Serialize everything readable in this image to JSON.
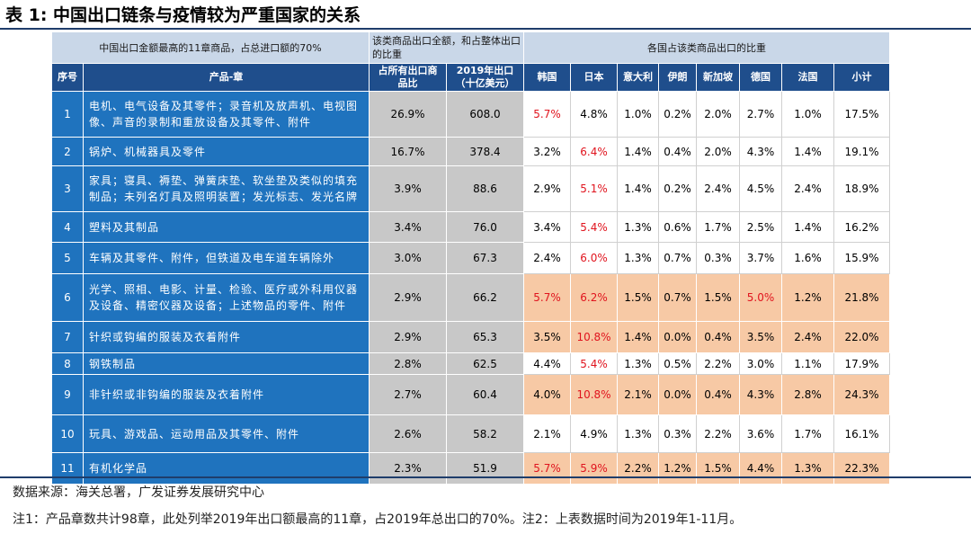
{
  "title": "表 1:  中国出口链条与疫情较为严重国家的关系",
  "header_top": {
    "left": "中国出口金额最高的11章商品，占总进口额的70%",
    "mid": "该类商品出口全额，和占整体出口的比重",
    "right": "各国占该类商品出口的比重"
  },
  "columns": [
    "序号",
    "产品-章",
    "占所有出口商品比",
    "2019年出口（十亿美元）",
    "韩国",
    "日本",
    "意大利",
    "伊朗",
    "新加坡",
    "德国",
    "法国",
    "小计"
  ],
  "rows": [
    {
      "idx": "1",
      "product": "电机、电气设备及其零件；录音机及放声机、电视图像、声音的录制和重放设备及其零件、附件",
      "share": "26.9%",
      "export": "608.0",
      "values": [
        "5.7%",
        "4.8%",
        "1.0%",
        "0.2%",
        "2.0%",
        "2.7%",
        "1.0%",
        "17.5%"
      ],
      "highlight": false,
      "red": [
        0
      ]
    },
    {
      "idx": "2",
      "product": "锅炉、机械器具及零件",
      "share": "16.7%",
      "export": "378.4",
      "values": [
        "3.2%",
        "6.4%",
        "1.4%",
        "0.4%",
        "2.0%",
        "4.3%",
        "1.4%",
        "19.1%"
      ],
      "highlight": false,
      "red": [
        1
      ]
    },
    {
      "idx": "3",
      "product": "家具；寝具、褥垫、弹簧床垫、软坐垫及类似的填充制品；未列名灯具及照明装置；发光标志、发光名牌",
      "share": "3.9%",
      "export": "88.6",
      "values": [
        "2.9%",
        "5.1%",
        "1.4%",
        "0.2%",
        "2.4%",
        "4.5%",
        "2.4%",
        "18.9%"
      ],
      "highlight": false,
      "red": [
        1
      ]
    },
    {
      "idx": "4",
      "product": "塑料及其制品",
      "share": "3.4%",
      "export": "76.0",
      "values": [
        "3.4%",
        "5.4%",
        "1.3%",
        "0.6%",
        "1.7%",
        "2.5%",
        "1.4%",
        "16.2%"
      ],
      "highlight": false,
      "red": [
        1
      ]
    },
    {
      "idx": "5",
      "product": "车辆及其零件、附件，但铁道及电车道车辆除外",
      "share": "3.0%",
      "export": "67.3",
      "values": [
        "2.4%",
        "6.0%",
        "1.3%",
        "0.7%",
        "0.3%",
        "3.7%",
        "1.6%",
        "15.9%"
      ],
      "highlight": false,
      "red": [
        1
      ]
    },
    {
      "idx": "6",
      "product": "光学、照相、电影、计量、检验、医疗或外科用仪器及设备、精密仪器及设备；上述物品的零件、附件",
      "share": "2.9%",
      "export": "66.2",
      "values": [
        "5.7%",
        "6.2%",
        "1.5%",
        "0.7%",
        "1.5%",
        "5.0%",
        "1.2%",
        "21.8%"
      ],
      "highlight": true,
      "red": [
        0,
        1,
        5
      ]
    },
    {
      "idx": "7",
      "product": "针织或钩编的服装及衣着附件",
      "share": "2.9%",
      "export": "65.3",
      "values": [
        "3.5%",
        "10.8%",
        "1.4%",
        "0.0%",
        "0.4%",
        "3.5%",
        "2.4%",
        "22.0%"
      ],
      "highlight": true,
      "red": [
        1
      ]
    },
    {
      "idx": "8",
      "product": "钢铁制品",
      "share": "2.8%",
      "export": "62.5",
      "values": [
        "4.4%",
        "5.4%",
        "1.3%",
        "0.5%",
        "2.2%",
        "3.0%",
        "1.1%",
        "17.9%"
      ],
      "highlight": false,
      "red": [
        1
      ]
    },
    {
      "idx": "9",
      "product": "非针织或非钩编的服装及衣着附件",
      "share": "2.7%",
      "export": "60.4",
      "values": [
        "4.0%",
        "10.8%",
        "2.1%",
        "0.0%",
        "0.4%",
        "4.3%",
        "2.8%",
        "24.3%"
      ],
      "highlight": true,
      "red": [
        1
      ]
    },
    {
      "idx": "10",
      "product": "玩具、游戏品、运动用品及其零件、附件",
      "share": "2.6%",
      "export": "58.2",
      "values": [
        "2.1%",
        "4.9%",
        "1.3%",
        "0.3%",
        "2.2%",
        "3.6%",
        "1.7%",
        "16.1%"
      ],
      "highlight": false,
      "red": []
    },
    {
      "idx": "11",
      "product": "有机化学品",
      "share": "2.3%",
      "export": "51.9",
      "values": [
        "5.7%",
        "5.9%",
        "2.2%",
        "1.2%",
        "1.5%",
        "4.4%",
        "1.3%",
        "22.3%"
      ],
      "highlight": true,
      "red": [
        0,
        1
      ]
    }
  ],
  "source": "数据来源：海关总署，广发证券发展研究中心",
  "note": "注1：产品章数共计98章，此处列举2019年出口额最高的11章，占2019年总出口的70%。注2：上表数据时间为2019年1-11月。",
  "colors": {
    "dark_blue": "#1f4e8c",
    "row_blue": "#1f73be",
    "gray": "#c8c8c8",
    "orange": "#f7c9a5",
    "red_text": "#e0141e"
  }
}
